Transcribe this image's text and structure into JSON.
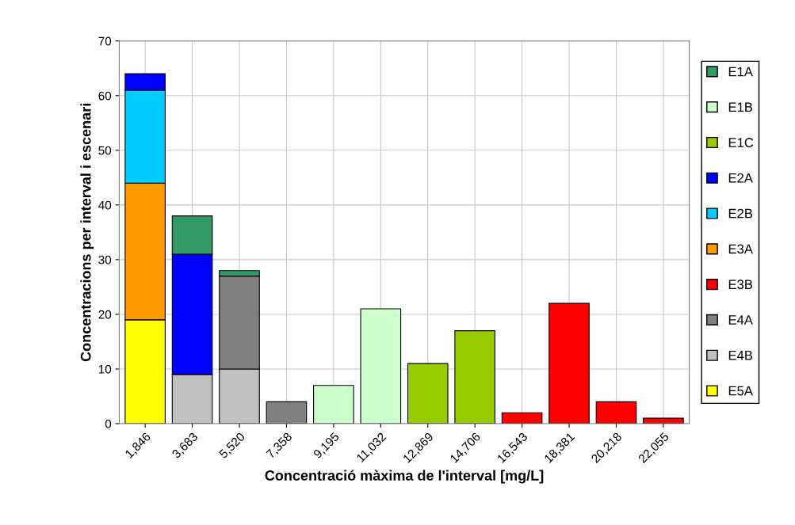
{
  "chart_data": {
    "type": "bar",
    "stacked": true,
    "xlabel": "Concentració màxima de l'interval [mg/L]",
    "ylabel": "Concentracions per interval i escenari",
    "categories": [
      "1,846",
      "3,683",
      "5,520",
      "7,358",
      "9,195",
      "11,032",
      "12,869",
      "14,706",
      "16,543",
      "18,381",
      "20,218",
      "22,055"
    ],
    "series": [
      {
        "name": "E5A",
        "color": "#ffff00",
        "values": [
          19,
          0,
          0,
          0,
          0,
          0,
          0,
          0,
          0,
          0,
          0,
          0
        ]
      },
      {
        "name": "E4B",
        "color": "#c0c0c0",
        "values": [
          0,
          9,
          10,
          0,
          0,
          0,
          0,
          0,
          0,
          0,
          0,
          0
        ]
      },
      {
        "name": "E4A",
        "color": "#808080",
        "values": [
          0,
          0,
          17,
          4,
          0,
          0,
          0,
          0,
          0,
          0,
          0,
          0
        ]
      },
      {
        "name": "E3B",
        "color": "#ff0000",
        "values": [
          0,
          0,
          0,
          0,
          0,
          0,
          0,
          0,
          2,
          22,
          4,
          1
        ]
      },
      {
        "name": "E3A",
        "color": "#ff9900",
        "values": [
          25,
          0,
          0,
          0,
          0,
          0,
          0,
          0,
          0,
          0,
          0,
          0
        ]
      },
      {
        "name": "E2B",
        "color": "#00ccff",
        "values": [
          17,
          0,
          0,
          0,
          0,
          0,
          0,
          0,
          0,
          0,
          0,
          0
        ]
      },
      {
        "name": "E2A",
        "color": "#0000ff",
        "values": [
          3,
          22,
          0,
          0,
          0,
          0,
          0,
          0,
          0,
          0,
          0,
          0
        ]
      },
      {
        "name": "E1C",
        "color": "#99cc00",
        "values": [
          0,
          0,
          0,
          0,
          0,
          0,
          11,
          17,
          0,
          0,
          0,
          0
        ]
      },
      {
        "name": "E1B",
        "color": "#ccffcc",
        "values": [
          0,
          0,
          0,
          0,
          7,
          21,
          0,
          0,
          0,
          0,
          0,
          0
        ]
      },
      {
        "name": "E1A",
        "color": "#339966",
        "values": [
          0,
          7,
          1,
          0,
          0,
          0,
          0,
          0,
          0,
          0,
          0,
          0
        ]
      }
    ],
    "ylim": [
      0,
      70
    ],
    "yticks": [
      0,
      10,
      20,
      30,
      40,
      50,
      60,
      70
    ],
    "grid": true,
    "legend": "right"
  }
}
